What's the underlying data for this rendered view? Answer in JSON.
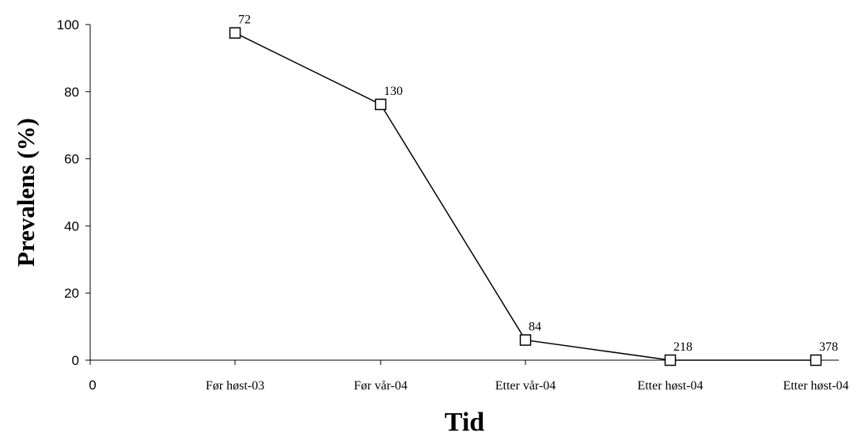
{
  "chart_data": {
    "type": "line",
    "categories": [
      "Før høst-03",
      "Før vår-04",
      "Etter vår-04",
      "Etter høst-04",
      "Etter høst-04"
    ],
    "values": [
      97.5,
      76.2,
      6.0,
      0.0,
      0.0
    ],
    "data_labels": [
      "72",
      "130",
      "84",
      "218",
      "378"
    ],
    "x_origin_label": "0",
    "xlabel": "Tid",
    "ylabel": "Prevalens (%)",
    "ylim": [
      0,
      100
    ],
    "yticks": [
      0,
      20,
      40,
      60,
      80,
      100
    ],
    "grid": false,
    "legend": "none",
    "marker": "hollow-square",
    "line_color": "#000000"
  }
}
